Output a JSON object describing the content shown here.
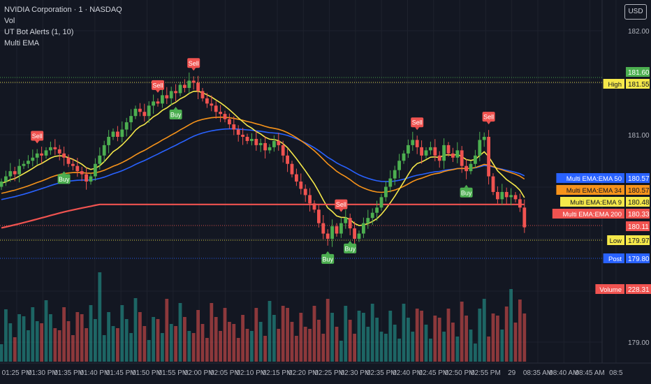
{
  "header": {
    "symbol_title": "NVIDIA Corporation · 1 · NASDAQ",
    "indicators": [
      "Vol",
      "UT Bot Alerts (1, 10)",
      "Multi EMA"
    ],
    "currency_button": "USD"
  },
  "chart_data": {
    "type": "candlestick",
    "price_axis_ticks": [
      "182.00",
      "181.00",
      "179.00"
    ],
    "time_axis_ticks": [
      "01:25 PM",
      "01:30 PM",
      "01:35 PM",
      "01:40 PM",
      "01:45 PM",
      "01:50 PM",
      "01:55 PM",
      "02:00 PM",
      "02:05 PM",
      "02:10 PM",
      "02:15 PM",
      "02:20 PM",
      "02:25 PM",
      "02:30 PM",
      "02:35 PM",
      "02:40 PM",
      "02:45 PM",
      "02:50 PM",
      "02:55 PM",
      "29",
      "08:35 AM",
      "08:40 AM",
      "08:45 AM",
      "08:5"
    ],
    "ylim": [
      178.75,
      182.25
    ],
    "candles_close": [
      180.55,
      180.6,
      180.65,
      180.62,
      180.7,
      180.72,
      180.75,
      180.78,
      180.82,
      180.8,
      180.85,
      180.88,
      180.86,
      180.82,
      180.78,
      180.72,
      180.7,
      180.65,
      180.62,
      180.55,
      180.6,
      180.72,
      180.8,
      180.9,
      180.98,
      181.03,
      180.98,
      181.05,
      181.12,
      181.18,
      181.25,
      181.22,
      181.18,
      181.28,
      181.32,
      181.3,
      181.38,
      181.35,
      181.42,
      181.4,
      181.48,
      181.45,
      181.52,
      181.5,
      181.42,
      181.35,
      181.3,
      181.28,
      181.22,
      181.2,
      181.15,
      181.1,
      181.05,
      181.0,
      180.98,
      180.94,
      180.96,
      180.9,
      180.92,
      180.85,
      180.88,
      180.94,
      180.9,
      180.8,
      180.72,
      180.62,
      180.55,
      180.48,
      180.42,
      180.34,
      180.28,
      180.15,
      180.05,
      180.0,
      180.12,
      180.05,
      180.15,
      180.2,
      180.1,
      180.0,
      180.05,
      180.15,
      180.2,
      180.25,
      180.3,
      180.4,
      180.5,
      180.58,
      180.66,
      180.75,
      180.82,
      180.9,
      180.95,
      180.88,
      180.8,
      180.85,
      180.88,
      180.8,
      180.75,
      180.9,
      180.82,
      180.78,
      180.85,
      180.7,
      180.65,
      180.72,
      180.8,
      180.95,
      180.98,
      180.6,
      180.45,
      180.38,
      180.45,
      180.4,
      180.42,
      180.38,
      180.3,
      180.11
    ],
    "buy_signals": [
      {
        "index": 14,
        "label": "Buy"
      },
      {
        "index": 39,
        "label": "Buy"
      },
      {
        "index": 73,
        "label": "Buy"
      },
      {
        "index": 78,
        "label": "Buy"
      },
      {
        "index": 104,
        "label": "Buy"
      }
    ],
    "sell_signals": [
      {
        "index": 8,
        "label": "Sell"
      },
      {
        "index": 35,
        "label": "Sell"
      },
      {
        "index": 43,
        "label": "Sell"
      },
      {
        "index": 76,
        "label": "Sell"
      },
      {
        "index": 93,
        "label": "Sell"
      },
      {
        "index": 109,
        "label": "Sell"
      }
    ],
    "ema_lines": [
      {
        "name": "Multi EMA:EMA 50",
        "color": "#2962ff",
        "last": 180.57
      },
      {
        "name": "Multi EMA:EMA 34",
        "color": "#f7931a",
        "last": 180.57
      },
      {
        "name": "Multi EMA:EMA 9",
        "color": "#f5e84a",
        "last": 180.48
      },
      {
        "name": "Multi EMA:EMA 200",
        "color": "#f05350",
        "last": 180.33
      }
    ],
    "price_tags": [
      {
        "label": "",
        "value": "181.60",
        "value_color": "#4caf50",
        "value_text": "#ffffff"
      },
      {
        "label": "High",
        "value": "181.55",
        "value_color": "#f5e84a",
        "value_text": "#131722"
      },
      {
        "label": "Multi EMA:EMA 50",
        "value": "180.57",
        "value_color": "#2962ff",
        "value_text": "#ffffff"
      },
      {
        "label": "Multi EMA:EMA 34",
        "value": "180.57",
        "value_color": "#f7931a",
        "value_text": "#131722"
      },
      {
        "label": "Multi EMA:EMA 9",
        "value": "180.48",
        "value_color": "#f5e84a",
        "value_text": "#131722"
      },
      {
        "label": "Multi EMA:EMA 200",
        "value": "180.33",
        "value_color": "#f05350",
        "value_text": "#ffffff"
      },
      {
        "label": "",
        "value": "180.11",
        "value_color": "#f05350",
        "value_text": "#ffffff"
      },
      {
        "label": "Low",
        "value": "179.97",
        "value_color": "#f5e84a",
        "value_text": "#131722"
      },
      {
        "label": "Post",
        "value": "179.80",
        "value_color": "#2962ff",
        "value_text": "#ffffff"
      },
      {
        "label": "Volume",
        "value": "228.31 K",
        "value_color": "#f05350",
        "value_text": "#ffffff"
      }
    ],
    "colors": {
      "up": "#26a69a",
      "up_candle": "#4caf50",
      "down": "#f05350",
      "background": "#131722"
    }
  }
}
